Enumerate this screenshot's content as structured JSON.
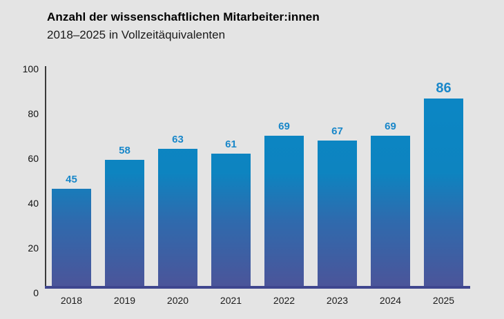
{
  "header": {
    "title": "Anzahl der wissenschaftlichen Mitarbeiter:innen",
    "subtitle": "2018–2025 in Vollzeitäquivalenten"
  },
  "chart_data": {
    "type": "bar",
    "title": "Anzahl der wissenschaftlichen Mitarbeiter:innen",
    "subtitle": "2018–2025 in Vollzeitäquivalenten",
    "categories": [
      "2018",
      "2019",
      "2020",
      "2021",
      "2022",
      "2023",
      "2024",
      "2025"
    ],
    "values": [
      45,
      58,
      63,
      61,
      69,
      67,
      69,
      86
    ],
    "value_labels_shown": true,
    "emphasized_index": 7,
    "yticks": [
      0,
      20,
      40,
      60,
      80,
      100
    ],
    "ylim": [
      0,
      100
    ],
    "xlabel": "",
    "ylabel": "",
    "grid": false,
    "legend": "none",
    "colors": {
      "background": "#e4e4e4",
      "bar_gradient_top": "#0b87c6",
      "bar_gradient_bottom": "#4c5499",
      "value_label": "#1987c9",
      "baseline": "#3f468f",
      "axis_line": "#3a3a3a",
      "text": "#1a1a1a"
    }
  }
}
